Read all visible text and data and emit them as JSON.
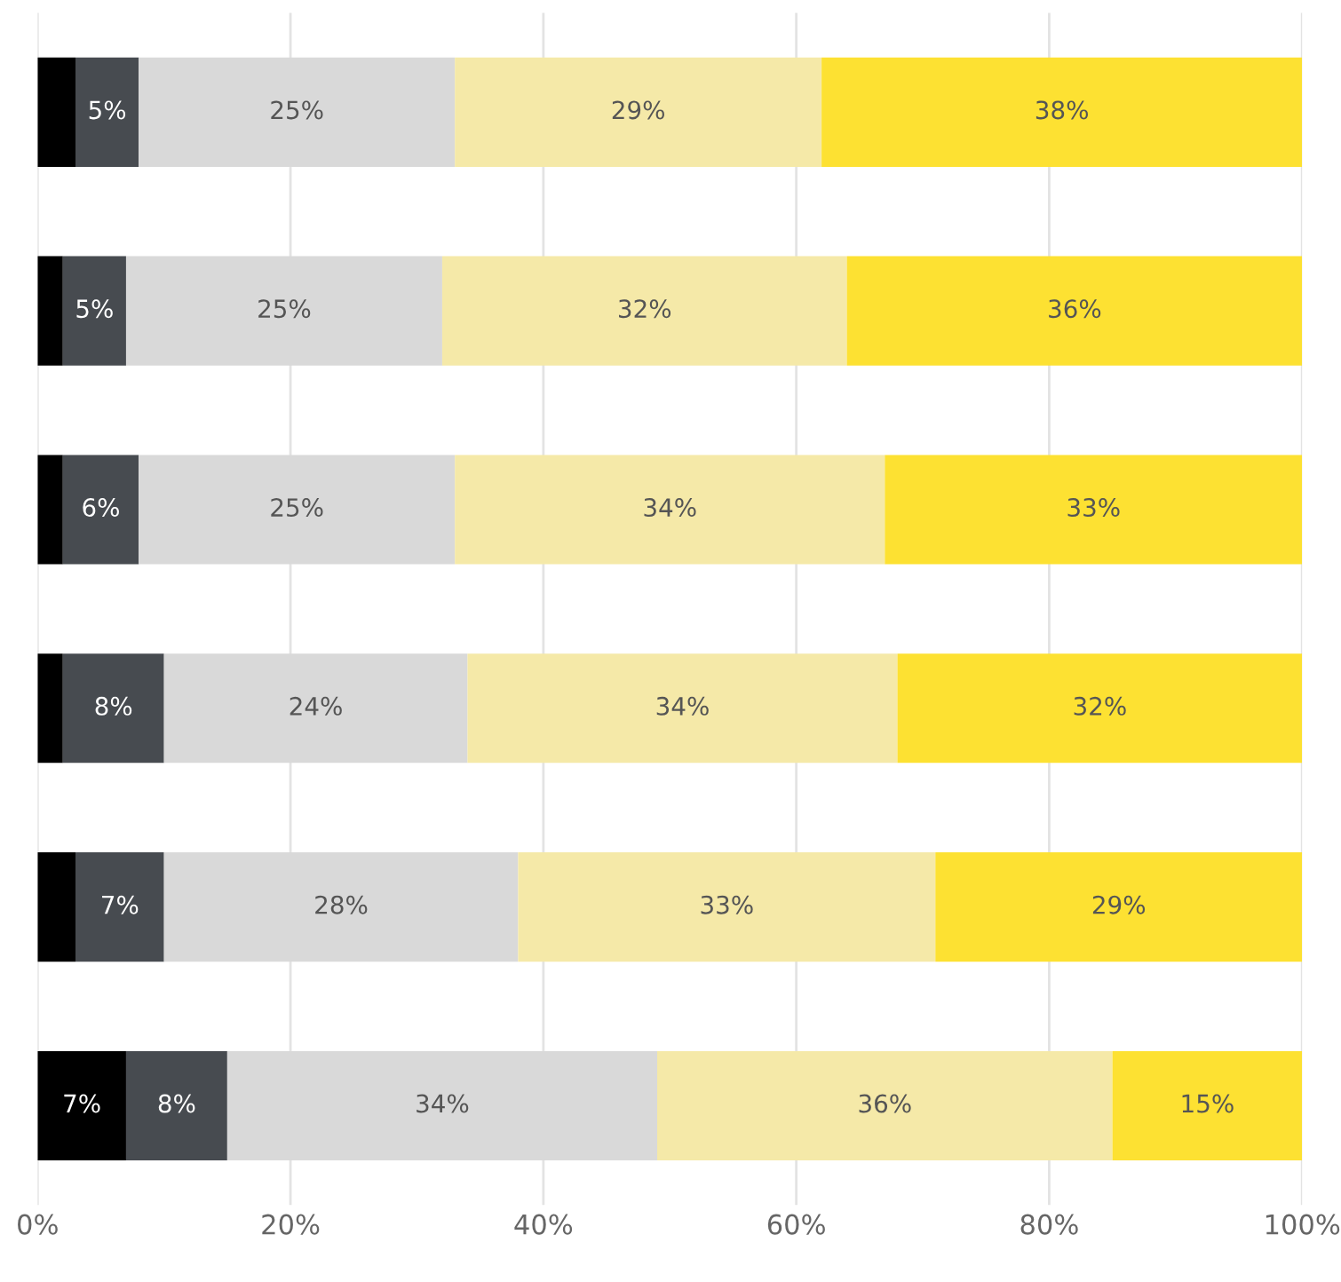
{
  "chart_data": {
    "type": "bar",
    "orientation": "horizontal",
    "stacked": true,
    "categories": [
      null,
      null,
      null,
      null,
      null,
      null
    ],
    "series": [
      {
        "color": "#000000",
        "values": [
          3,
          2,
          2,
          2,
          3,
          7
        ],
        "value_labels": [
          null,
          null,
          null,
          null,
          null,
          "7%"
        ]
      },
      {
        "color": "#474b50",
        "values": [
          5,
          5,
          6,
          8,
          7,
          8
        ],
        "value_labels": [
          "5%",
          "5%",
          "6%",
          "8%",
          "7%",
          "8%"
        ]
      },
      {
        "color": "#d9d9d9",
        "values": [
          25,
          25,
          25,
          24,
          28,
          34
        ],
        "value_labels": [
          "25%",
          "25%",
          "25%",
          "24%",
          "28%",
          "34%"
        ]
      },
      {
        "color": "#f5e9a8",
        "values": [
          29,
          32,
          34,
          34,
          33,
          36
        ],
        "value_labels": [
          "29%",
          "32%",
          "34%",
          "34%",
          "33%",
          "36%"
        ]
      },
      {
        "color": "#fde132",
        "values": [
          38,
          36,
          33,
          32,
          29,
          15
        ],
        "value_labels": [
          "38%",
          "36%",
          "33%",
          "32%",
          "29%",
          "15%"
        ]
      }
    ],
    "xlim": [
      0,
      100
    ],
    "xticks": [
      {
        "value": 0,
        "label": "0%"
      },
      {
        "value": 20,
        "label": "20%"
      },
      {
        "value": 40,
        "label": "40%"
      },
      {
        "value": 60,
        "label": "60%"
      },
      {
        "value": 80,
        "label": "80%"
      },
      {
        "value": 100,
        "label": "100%"
      }
    ],
    "grid": "x",
    "tick_labels": "x"
  }
}
